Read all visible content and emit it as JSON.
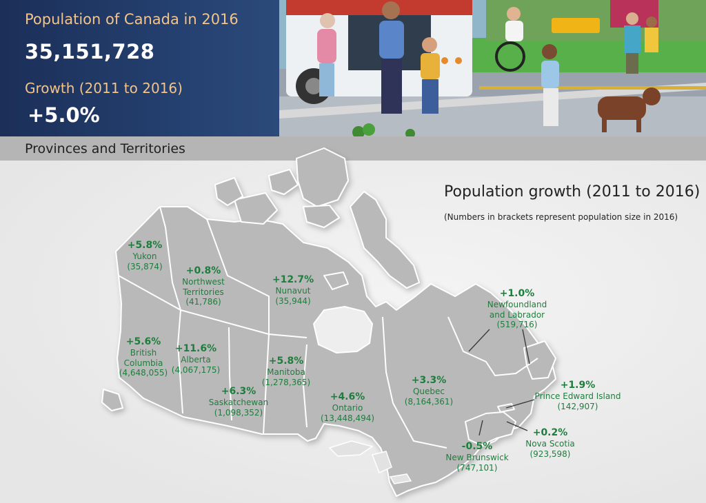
{
  "header": {
    "title": "Population of Canada in 2016",
    "population": "35,151,728",
    "growth_title": "Growth (2011 to 2016)",
    "growth_value": "+5.0%"
  },
  "band": {
    "label": "Provinces and Territories"
  },
  "legend": {
    "title": "Population growth (2011 to 2016)",
    "note": "(Numbers in brackets represent population size in 2016)"
  },
  "regions": {
    "yukon": {
      "pct": "+5.8%",
      "name": "Yukon",
      "pop": "(35,874)"
    },
    "nwt": {
      "pct": "+0.8%",
      "name1": "Northwest",
      "name2": "Territories",
      "pop": "(41,786)"
    },
    "nunavut": {
      "pct": "+12.7%",
      "name": "Nunavut",
      "pop": "(35,944)"
    },
    "bc": {
      "pct": "+5.6%",
      "name1": "British",
      "name2": "Columbia",
      "pop": "(4,648,055)"
    },
    "alberta": {
      "pct": "+11.6%",
      "name": "Alberta",
      "pop": "(4,067,175)"
    },
    "saskatchewan": {
      "pct": "+6.3%",
      "name": "Saskatchewan",
      "pop": "(1,098,352)"
    },
    "manitoba": {
      "pct": "+5.8%",
      "name": "Manitoba",
      "pop": "(1,278,365)"
    },
    "ontario": {
      "pct": "+4.6%",
      "name": "Ontario",
      "pop": "(13,448,494)"
    },
    "quebec": {
      "pct": "+3.3%",
      "name": "Quebec",
      "pop": "(8,164,361)"
    },
    "nl": {
      "pct": "+1.0%",
      "name1": "Newfoundland",
      "name2": "and Labrador",
      "pop": "(519,716)"
    },
    "pei": {
      "pct": "+1.9%",
      "name": "Prince Edward Island",
      "pop": "(142,907)"
    },
    "ns": {
      "pct": "+0.2%",
      "name": "Nova Scotia",
      "pop": "(923,598)"
    },
    "nb": {
      "pct": "-0.5%",
      "name": "New Brunswick",
      "pop": "(747,101)"
    }
  },
  "colors": {
    "header_bg": "#1f3563",
    "header_accent": "#f3c48b",
    "label_green": "#1e7d3c",
    "land_gray": "#b9b9b9",
    "border_white": "#ffffff"
  }
}
